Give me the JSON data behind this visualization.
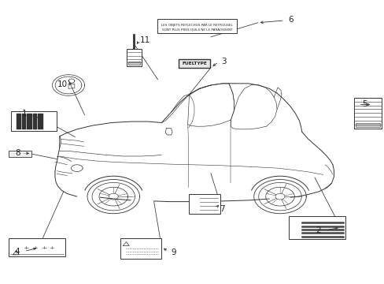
{
  "bg_color": "#ffffff",
  "lc": "#333333",
  "figsize": [
    4.89,
    3.6
  ],
  "dpi": 100,
  "items": {
    "label1": {
      "num": "1",
      "nx": 0.08,
      "ny": 0.595
    },
    "label2": {
      "num": "2",
      "nx": 0.845,
      "ny": 0.188
    },
    "label3": {
      "num": "3",
      "nx": 0.57,
      "ny": 0.782
    },
    "label4": {
      "num": "4",
      "nx": 0.063,
      "ny": 0.115
    },
    "label5": {
      "num": "5",
      "nx": 0.935,
      "ny": 0.632
    },
    "label6": {
      "num": "6",
      "nx": 0.74,
      "ny": 0.928
    },
    "label7": {
      "num": "7",
      "nx": 0.565,
      "ny": 0.262
    },
    "label8": {
      "num": "8",
      "nx": 0.059,
      "ny": 0.465
    },
    "label9": {
      "num": "9",
      "nx": 0.44,
      "ny": 0.112
    },
    "label10": {
      "num": "10",
      "nx": 0.183,
      "ny": 0.7
    },
    "label11": {
      "num": "11",
      "nx": 0.365,
      "ny": 0.858
    }
  },
  "connector_lines": [
    [
      0.08,
      0.595,
      0.115,
      0.578
    ],
    [
      0.843,
      0.195,
      0.88,
      0.21
    ],
    [
      0.568,
      0.782,
      0.548,
      0.762
    ],
    [
      0.065,
      0.12,
      0.1,
      0.128
    ],
    [
      0.932,
      0.632,
      0.972,
      0.632
    ],
    [
      0.738,
      0.928,
      0.67,
      0.92
    ],
    [
      0.562,
      0.268,
      0.572,
      0.285
    ],
    [
      0.062,
      0.462,
      0.082,
      0.458
    ],
    [
      0.437,
      0.115,
      0.42,
      0.132
    ],
    [
      0.185,
      0.697,
      0.175,
      0.715
    ],
    [
      0.362,
      0.858,
      0.352,
      0.84
    ]
  ]
}
